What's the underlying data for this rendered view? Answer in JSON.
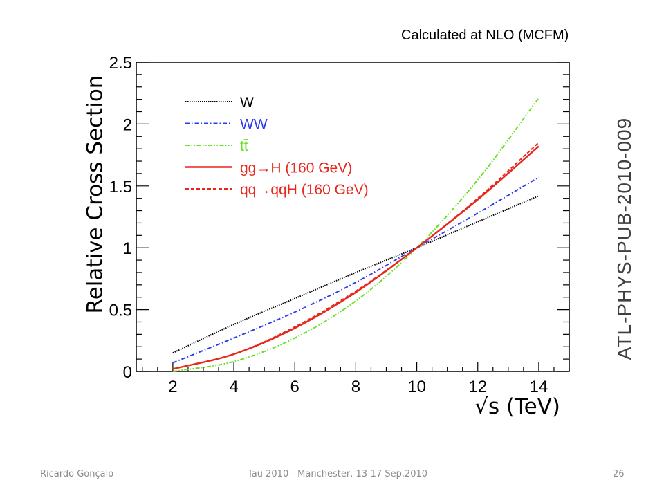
{
  "header": {
    "note": "Calculated at NLO (MCFM)"
  },
  "watermark": "ATL-PHYS-PUB-2010-009",
  "footer": {
    "author": "Ricardo Gonçalo",
    "event": "Tau 2010 - Manchester, 13-17 Sep.2010",
    "page": "26"
  },
  "chart_data": {
    "type": "line",
    "title": "",
    "xlabel": "√s (TeV)",
    "ylabel": "Relative Cross Section",
    "xlim": [
      0.8,
      15.0
    ],
    "ylim": [
      0,
      2.5
    ],
    "xticks": [
      2,
      4,
      6,
      8,
      10,
      12,
      14
    ],
    "yticks": [
      0,
      0.5,
      1,
      1.5,
      2,
      2.5
    ],
    "grid": false,
    "legend": "top-left",
    "series": [
      {
        "name": "W",
        "color": "#000000",
        "style": "dotted",
        "x": [
          2,
          4,
          6,
          8,
          10,
          12,
          14
        ],
        "y": [
          0.15,
          0.38,
          0.59,
          0.8,
          1.0,
          1.21,
          1.42
        ]
      },
      {
        "name": "WW",
        "color": "#2b3cf0",
        "style": "dash-dot",
        "x": [
          2,
          4,
          6,
          8,
          10,
          12,
          14
        ],
        "y": [
          0.07,
          0.27,
          0.48,
          0.72,
          1.0,
          1.28,
          1.57
        ]
      },
      {
        "name": "tt̄",
        "color": "#66e020",
        "style": "dash-dot-dot",
        "x": [
          2,
          4,
          6,
          8,
          10,
          12,
          14
        ],
        "y": [
          0.0,
          0.08,
          0.27,
          0.57,
          1.0,
          1.55,
          2.21
        ]
      },
      {
        "name": "gg→H (160 GeV)",
        "color": "#e8261c",
        "style": "solid",
        "x": [
          2,
          4,
          6,
          8,
          10,
          12,
          14
        ],
        "y": [
          0.02,
          0.14,
          0.35,
          0.64,
          1.0,
          1.39,
          1.82
        ]
      },
      {
        "name": "qq→qqH (160 GeV)",
        "color": "#e8261c",
        "style": "dashed",
        "x": [
          2,
          4,
          6,
          8,
          10,
          12,
          14
        ],
        "y": [
          0.02,
          0.14,
          0.36,
          0.65,
          1.0,
          1.4,
          1.85
        ]
      }
    ]
  }
}
